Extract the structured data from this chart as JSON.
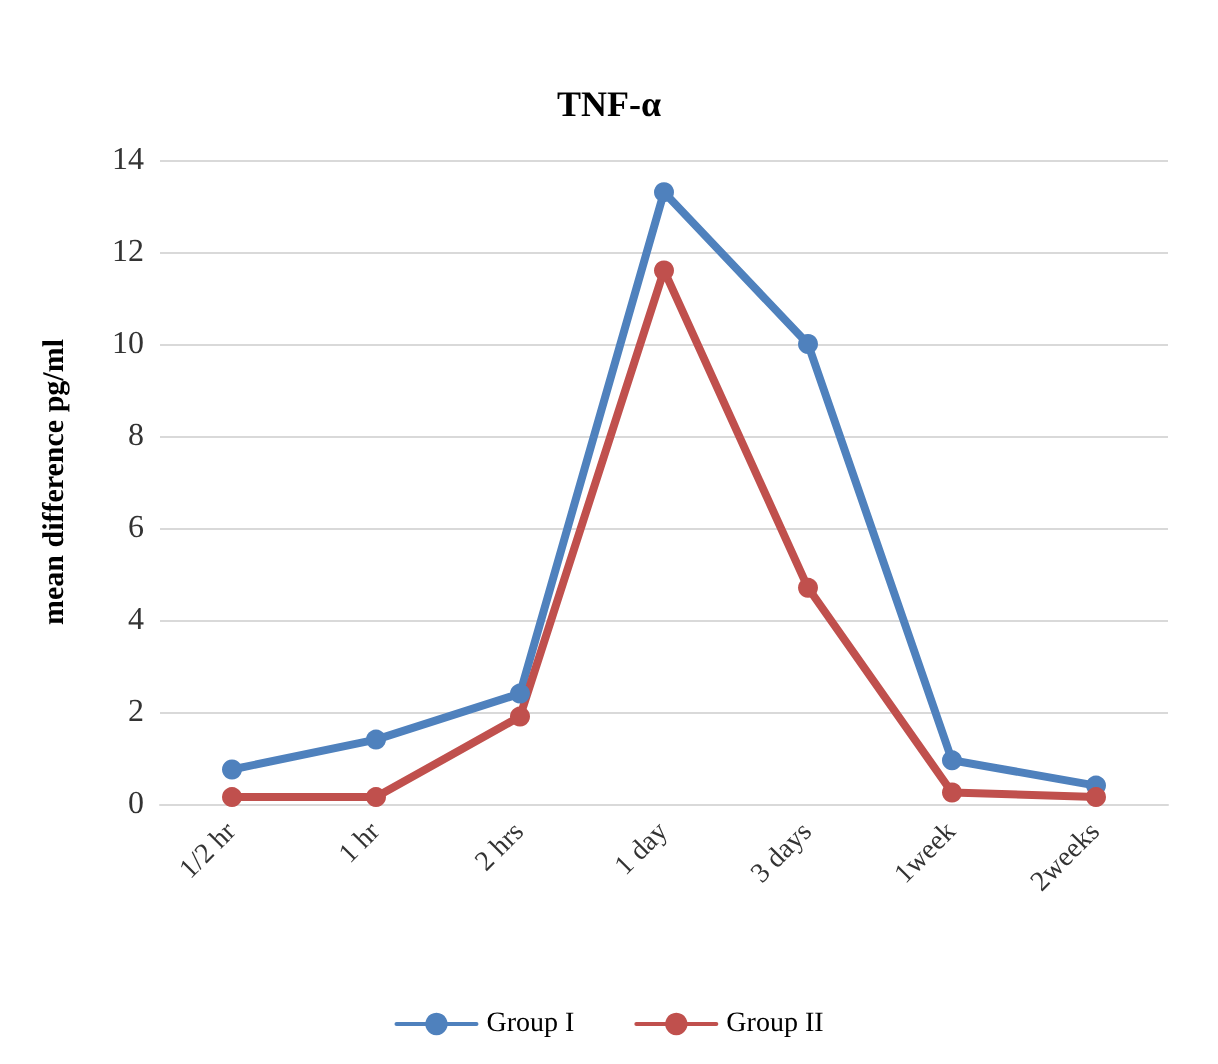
{
  "chart_data": {
    "type": "line",
    "title": "TNF-α",
    "ylabel": "mean difference pg/ml",
    "categories": [
      "1/2 hr",
      "1 hr",
      "2 hrs",
      "1 day",
      "3 days",
      "1week",
      "2weeks"
    ],
    "series": [
      {
        "name": "Group I",
        "color": "#4f81bd",
        "values": [
          0.75,
          1.4,
          2.4,
          13.3,
          10.0,
          0.95,
          0.4
        ]
      },
      {
        "name": "Group II",
        "color": "#c0504d",
        "values": [
          0.15,
          0.15,
          1.9,
          11.6,
          4.7,
          0.25,
          0.15
        ]
      }
    ],
    "ylim": [
      0,
      14
    ],
    "yticks": [
      0,
      2,
      4,
      6,
      8,
      10,
      12,
      14
    ],
    "grid": "y",
    "legend": "bottom",
    "marker": "circle",
    "line_style": "solid"
  }
}
